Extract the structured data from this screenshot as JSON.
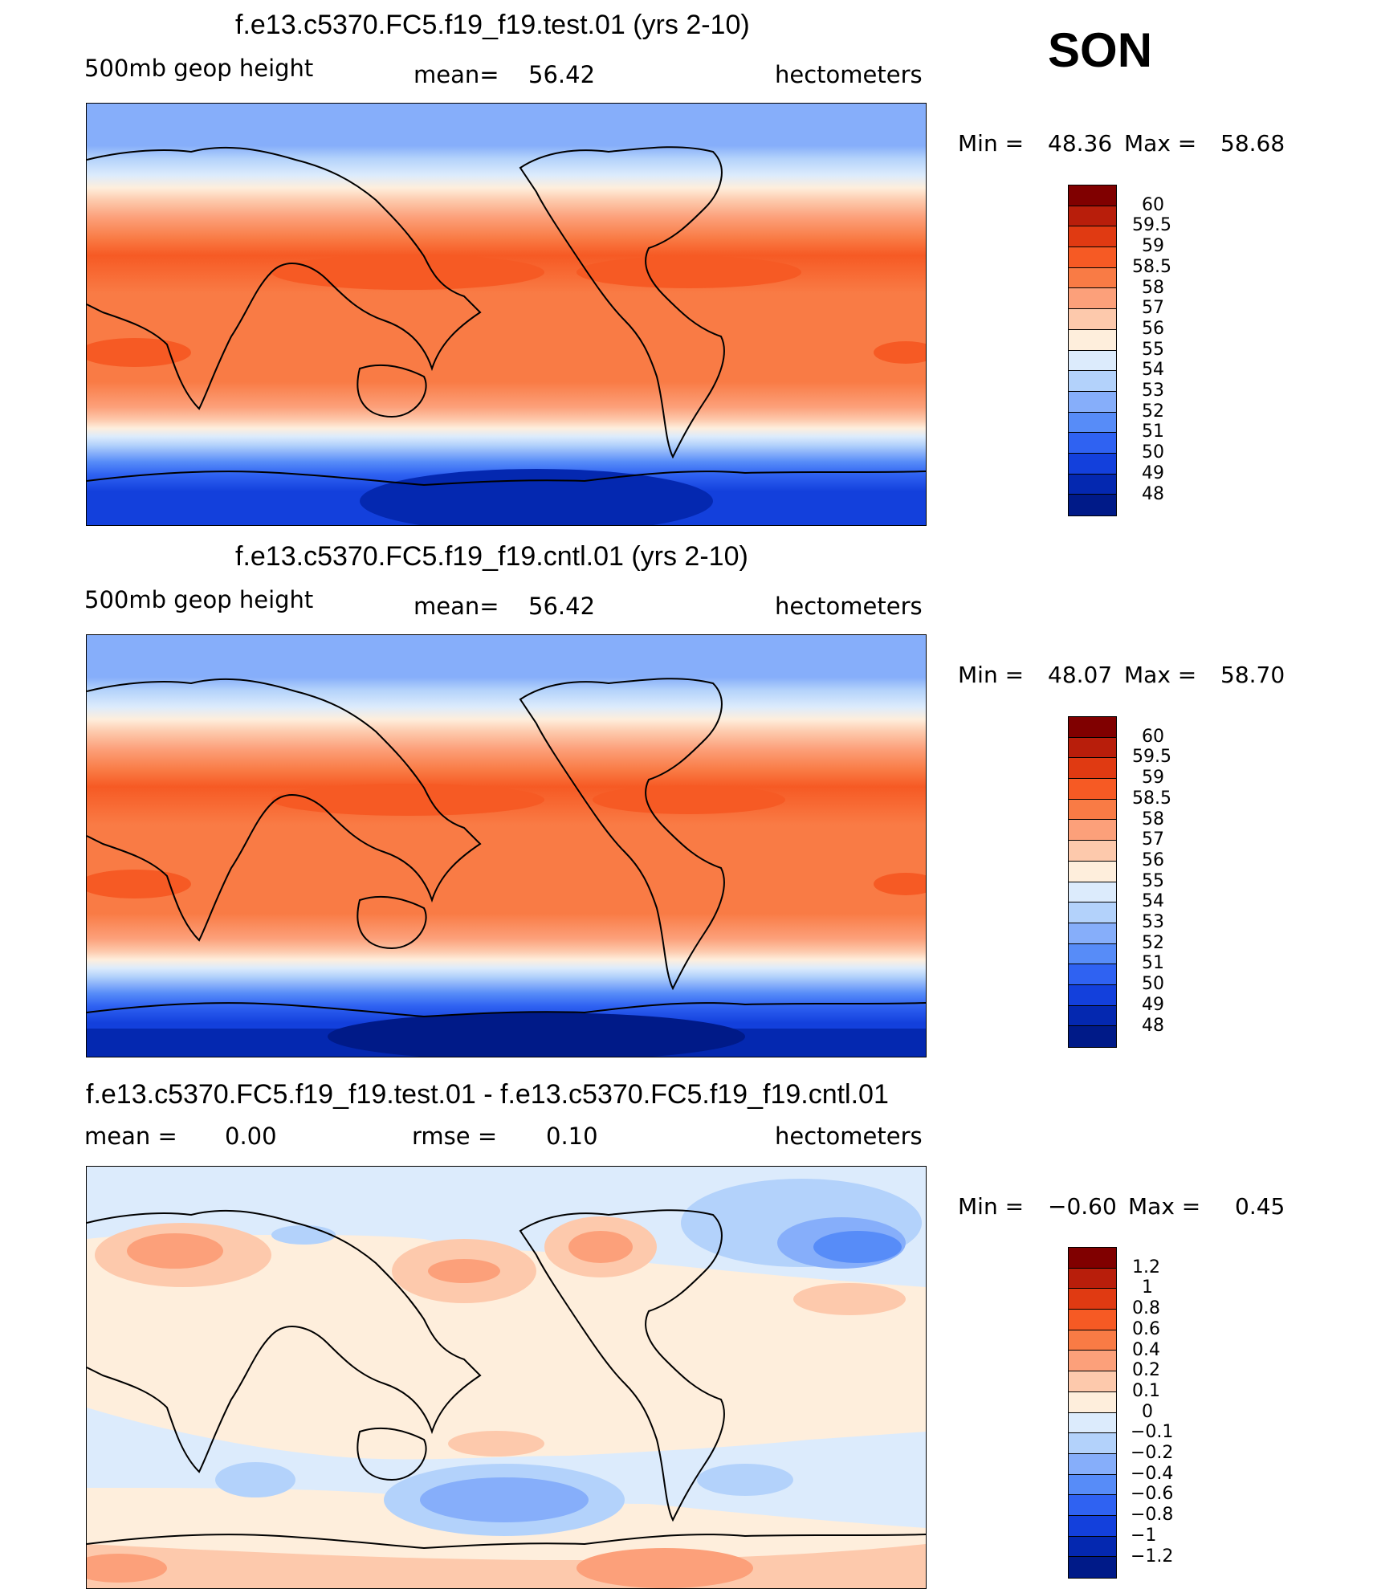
{
  "season": "SON",
  "units": "hectometers",
  "panels": [
    {
      "id": "test",
      "title": "f.e13.c5370.FC5.f19_f19.test.01 (yrs 2-10)",
      "left_label": "500mb geop height",
      "stat_label": "mean=",
      "stat_value": "56.42",
      "units": "hectometers",
      "min_label": "Min =",
      "min_value": "48.36",
      "max_label": "Max =",
      "max_value": "58.68",
      "colorbar_labels": [
        "60",
        "59.5",
        "59",
        "58.5",
        "58",
        "57",
        "56",
        "55",
        "54",
        "53",
        "52",
        "51",
        "50",
        "49",
        "48"
      ],
      "colors": [
        "#800000",
        "#b81e0b",
        "#e03a12",
        "#f65a24",
        "#f97b45",
        "#fca07a",
        "#fdc9ac",
        "#feeedc",
        "#dcebfc",
        "#b3d2fb",
        "#86aefa",
        "#578cf8",
        "#2f62f2",
        "#1340dc",
        "#0428b0",
        "#001a88"
      ]
    },
    {
      "id": "cntl",
      "title": "f.e13.c5370.FC5.f19_f19.cntl.01 (yrs 2-10)",
      "left_label": "500mb geop height",
      "stat_label": "mean=",
      "stat_value": "56.42",
      "units": "hectometers",
      "min_label": "Min =",
      "min_value": "48.07",
      "max_label": "Max =",
      "max_value": "58.70",
      "colorbar_labels": [
        "60",
        "59.5",
        "59",
        "58.5",
        "58",
        "57",
        "56",
        "55",
        "54",
        "53",
        "52",
        "51",
        "50",
        "49",
        "48"
      ],
      "colors": [
        "#800000",
        "#b81e0b",
        "#e03a12",
        "#f65a24",
        "#f97b45",
        "#fca07a",
        "#fdc9ac",
        "#feeedc",
        "#dcebfc",
        "#b3d2fb",
        "#86aefa",
        "#578cf8",
        "#2f62f2",
        "#1340dc",
        "#0428b0",
        "#001a88"
      ]
    },
    {
      "id": "diff",
      "title": "f.e13.c5370.FC5.f19_f19.test.01 - f.e13.c5370.FC5.f19_f19.cntl.01",
      "left_label": "mean =",
      "left_value": "0.00",
      "stat_label": "rmse =",
      "stat_value": "0.10",
      "units": "hectometers",
      "min_label": "Min =",
      "min_value": "−0.60",
      "max_label": "Max =",
      "max_value": "0.45",
      "colorbar_labels": [
        "1.2",
        "1",
        "0.8",
        "0.6",
        "0.4",
        "0.2",
        "0.1",
        "0",
        "−0.1",
        "−0.2",
        "−0.4",
        "−0.6",
        "−0.8",
        "−1",
        "−1.2"
      ],
      "colors": [
        "#800000",
        "#b81e0b",
        "#e03a12",
        "#f65a24",
        "#f97b45",
        "#fca07a",
        "#fdc9ac",
        "#feeedc",
        "#dcebfc",
        "#b3d2fb",
        "#86aefa",
        "#578cf8",
        "#2f62f2",
        "#1340dc",
        "#0428b0",
        "#001a88"
      ]
    }
  ]
}
